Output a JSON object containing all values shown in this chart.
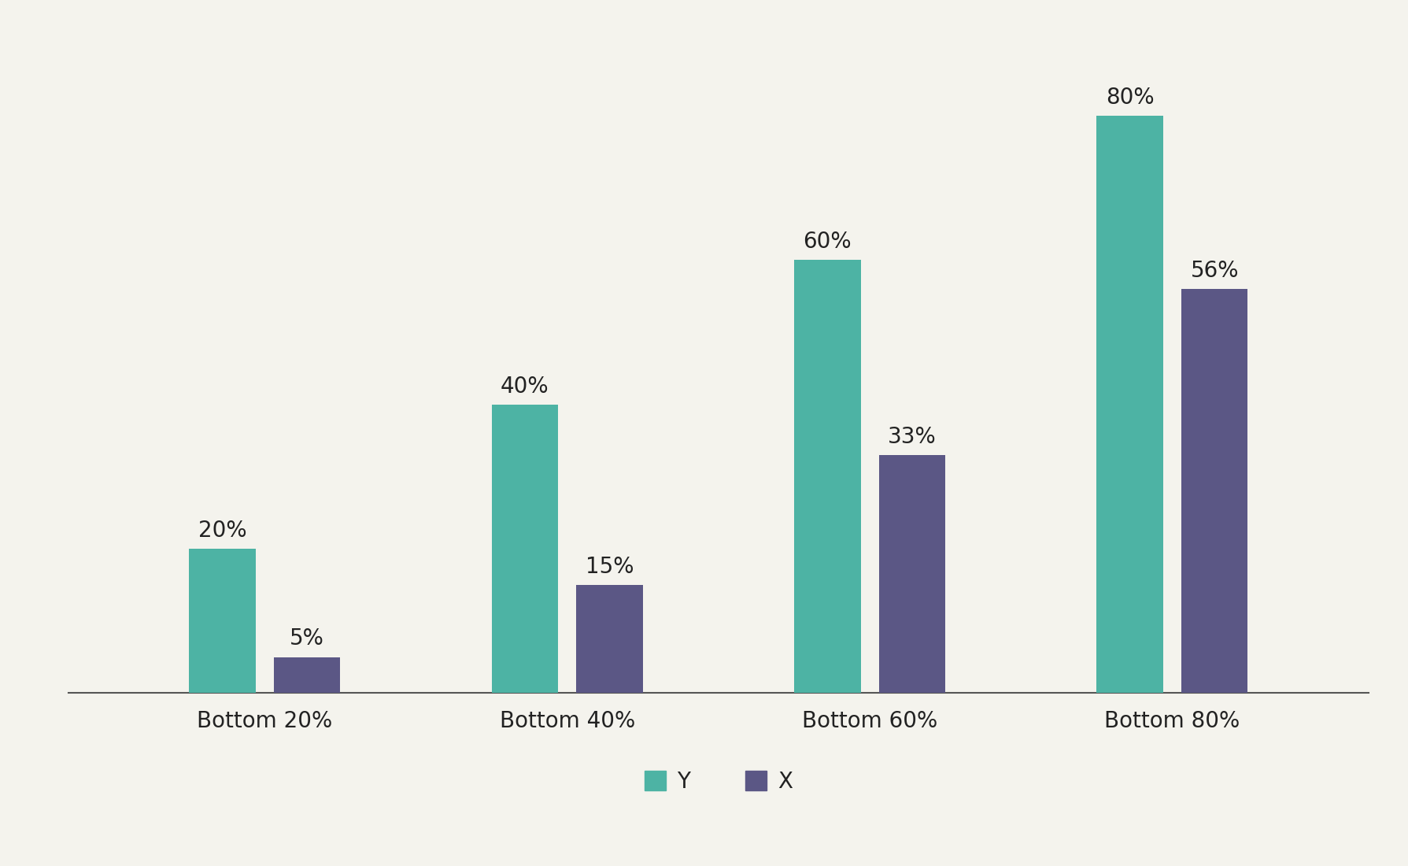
{
  "categories": [
    "Bottom 20%",
    "Bottom 40%",
    "Bottom 60%",
    "Bottom 80%"
  ],
  "series_Y": [
    20,
    40,
    60,
    80
  ],
  "series_X": [
    5,
    15,
    33,
    56
  ],
  "labels_Y": [
    "20%",
    "40%",
    "60%",
    "80%"
  ],
  "labels_X": [
    "5%",
    "15%",
    "33%",
    "56%"
  ],
  "color_Y": "#4db3a4",
  "color_X": "#5b5785",
  "legend_Y": "Y",
  "legend_X": "X",
  "background_color": "#f4f3ed",
  "ylim": [
    0,
    92
  ],
  "bar_width": 0.22,
  "bar_gap": 0.06,
  "label_fontsize": 20,
  "tick_fontsize": 20,
  "ylabel_fontsize": 20,
  "legend_fontsize": 20,
  "annotation_fontsize": 20
}
